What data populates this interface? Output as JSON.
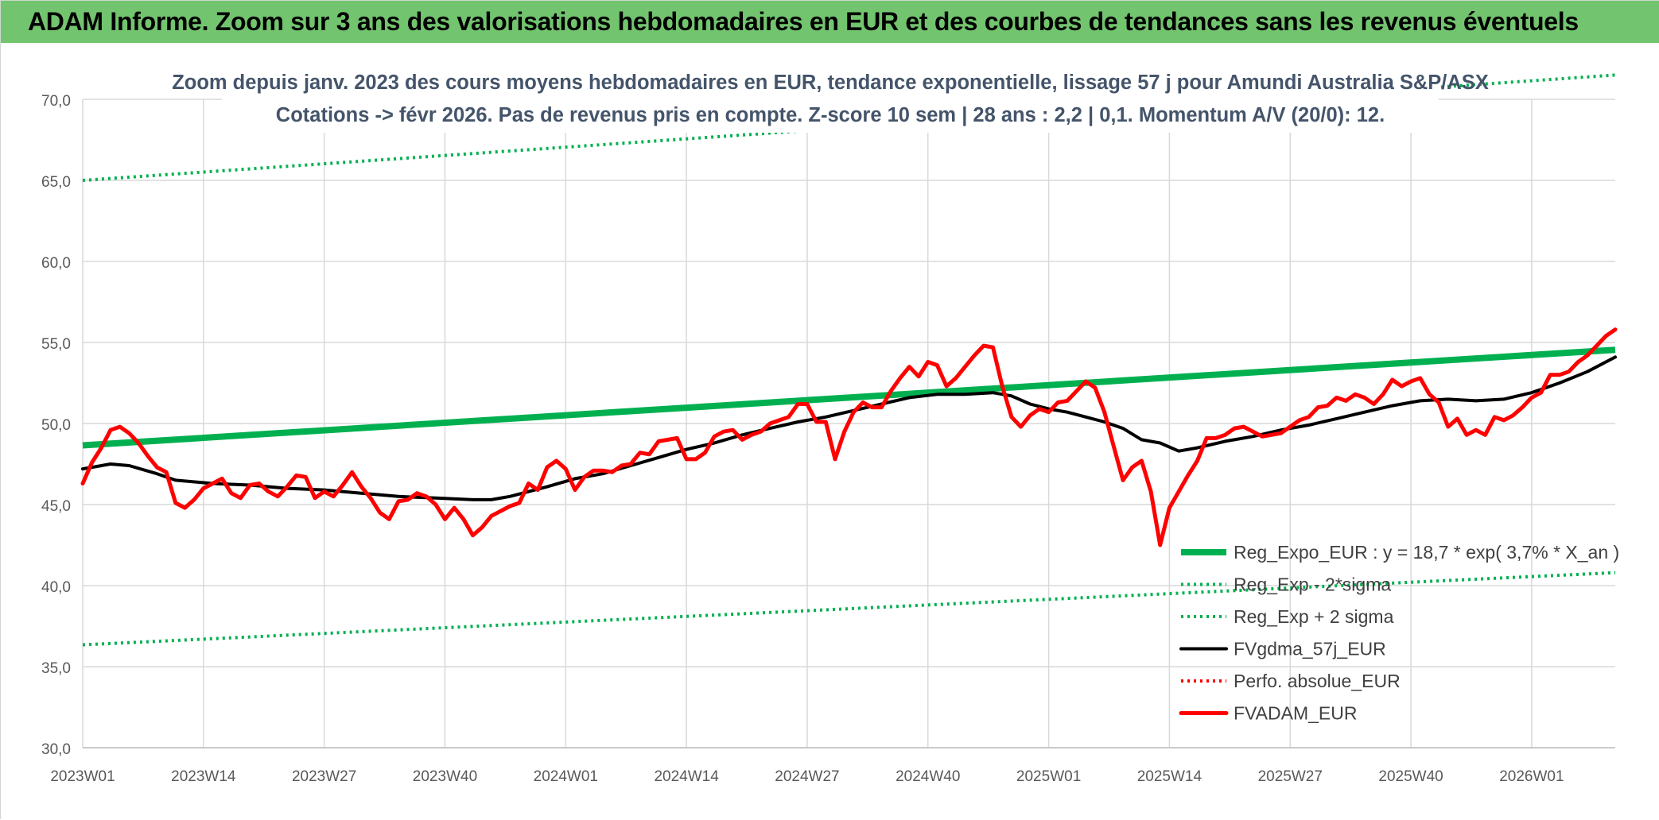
{
  "banner": {
    "title": "ADAM Informe. Zoom sur 3 ans des valorisations hebdomadaires en EUR et des courbes de tendances sans les revenus éventuels"
  },
  "chart_data": {
    "type": "line",
    "title_line1": "Zoom depuis janv. 2023 des cours moyens hebdomadaires en EUR, tendance exponentielle, lissage 57 j pour Amundi Australia S&P/ASX",
    "title_line2": "Cotations -> févr 2026. Pas de revenus pris en compte. Z-score 10 sem | 28 ans : 2,2 | 0,1. Momentum A/V (20/0): 12.",
    "ylim": [
      30,
      70
    ],
    "y_ticks": [
      "30,0",
      "35,0",
      "40,0",
      "45,0",
      "50,0",
      "55,0",
      "60,0",
      "65,0",
      "70,0"
    ],
    "x_ticks": [
      "2023W01",
      "2023W14",
      "2023W27",
      "2023W40",
      "2024W01",
      "2024W14",
      "2024W27",
      "2024W40",
      "2025W01",
      "2025W14",
      "2025W27",
      "2025W40",
      "2026W01"
    ],
    "grid": true,
    "legend_position": "bottom-right",
    "series": [
      {
        "name": "Reg_Expo_EUR : y = 18,7 * exp( 3,7% *  X_an )",
        "color": "#00b050",
        "style": "solid-thick",
        "points": [
          [
            0,
            48.65
          ],
          [
            165,
            54.55
          ]
        ]
      },
      {
        "name": "Reg_Exp - 2*sigma",
        "color": "#00b050",
        "style": "dotted",
        "points": [
          [
            0,
            36.35
          ],
          [
            165,
            40.8
          ]
        ]
      },
      {
        "name": "Reg_Exp + 2 sigma",
        "color": "#00b050",
        "style": "dotted",
        "points": [
          [
            0,
            65.0
          ],
          [
            165,
            71.5
          ]
        ]
      },
      {
        "name": "FVgdma_57j_EUR",
        "color": "#000000",
        "style": "solid",
        "points": [
          [
            0,
            47.2
          ],
          [
            3,
            47.5
          ],
          [
            5,
            47.4
          ],
          [
            8,
            46.9
          ],
          [
            10,
            46.5
          ],
          [
            14,
            46.3
          ],
          [
            18,
            46.2
          ],
          [
            22,
            46.0
          ],
          [
            26,
            45.9
          ],
          [
            30,
            45.7
          ],
          [
            34,
            45.5
          ],
          [
            38,
            45.4
          ],
          [
            42,
            45.3
          ],
          [
            44,
            45.3
          ],
          [
            46,
            45.5
          ],
          [
            48,
            45.8
          ],
          [
            50,
            46.1
          ],
          [
            53,
            46.6
          ],
          [
            56,
            46.9
          ],
          [
            59,
            47.4
          ],
          [
            62,
            47.9
          ],
          [
            65,
            48.4
          ],
          [
            68,
            48.8
          ],
          [
            71,
            49.3
          ],
          [
            74,
            49.7
          ],
          [
            77,
            50.1
          ],
          [
            80,
            50.4
          ],
          [
            83,
            50.8
          ],
          [
            86,
            51.2
          ],
          [
            89,
            51.6
          ],
          [
            92,
            51.8
          ],
          [
            95,
            51.8
          ],
          [
            98,
            51.9
          ],
          [
            100,
            51.7
          ],
          [
            102,
            51.2
          ],
          [
            104,
            50.9
          ],
          [
            106,
            50.7
          ],
          [
            108,
            50.4
          ],
          [
            110,
            50.1
          ],
          [
            112,
            49.7
          ],
          [
            114,
            49.0
          ],
          [
            116,
            48.8
          ],
          [
            118,
            48.3
          ],
          [
            120,
            48.5
          ],
          [
            123,
            48.9
          ],
          [
            126,
            49.2
          ],
          [
            129,
            49.6
          ],
          [
            132,
            49.9
          ],
          [
            135,
            50.3
          ],
          [
            138,
            50.7
          ],
          [
            141,
            51.1
          ],
          [
            144,
            51.4
          ],
          [
            147,
            51.5
          ],
          [
            150,
            51.4
          ],
          [
            153,
            51.5
          ],
          [
            156,
            51.9
          ],
          [
            159,
            52.5
          ],
          [
            162,
            53.2
          ],
          [
            165,
            54.1
          ]
        ]
      },
      {
        "name": "Perfo. absolue_EUR",
        "color": "#ff0000",
        "style": "dotted",
        "points": []
      },
      {
        "name": "FVADAM_EUR",
        "color": "#ff0000",
        "style": "solid-thick",
        "points": [
          [
            0,
            46.3
          ],
          [
            1,
            47.6
          ],
          [
            2,
            48.5
          ],
          [
            3,
            49.6
          ],
          [
            4,
            49.8
          ],
          [
            5,
            49.4
          ],
          [
            6,
            48.8
          ],
          [
            7,
            48.0
          ],
          [
            8,
            47.3
          ],
          [
            9,
            47.0
          ],
          [
            10,
            45.1
          ],
          [
            11,
            44.8
          ],
          [
            12,
            45.3
          ],
          [
            13,
            46.0
          ],
          [
            14,
            46.3
          ],
          [
            15,
            46.6
          ],
          [
            16,
            45.7
          ],
          [
            17,
            45.4
          ],
          [
            18,
            46.2
          ],
          [
            19,
            46.3
          ],
          [
            20,
            45.8
          ],
          [
            21,
            45.5
          ],
          [
            22,
            46.1
          ],
          [
            23,
            46.8
          ],
          [
            24,
            46.7
          ],
          [
            25,
            45.4
          ],
          [
            26,
            45.8
          ],
          [
            27,
            45.5
          ],
          [
            28,
            46.2
          ],
          [
            29,
            47.0
          ],
          [
            30,
            46.1
          ],
          [
            31,
            45.4
          ],
          [
            32,
            44.5
          ],
          [
            33,
            44.1
          ],
          [
            34,
            45.2
          ],
          [
            35,
            45.3
          ],
          [
            36,
            45.7
          ],
          [
            37,
            45.5
          ],
          [
            38,
            45.0
          ],
          [
            39,
            44.1
          ],
          [
            40,
            44.8
          ],
          [
            41,
            44.1
          ],
          [
            42,
            43.1
          ],
          [
            43,
            43.6
          ],
          [
            44,
            44.3
          ],
          [
            45,
            44.6
          ],
          [
            46,
            44.9
          ],
          [
            47,
            45.1
          ],
          [
            48,
            46.3
          ],
          [
            49,
            45.9
          ],
          [
            50,
            47.3
          ],
          [
            51,
            47.7
          ],
          [
            52,
            47.2
          ],
          [
            53,
            45.9
          ],
          [
            54,
            46.7
          ],
          [
            55,
            47.1
          ],
          [
            56,
            47.1
          ],
          [
            57,
            47.0
          ],
          [
            58,
            47.4
          ],
          [
            59,
            47.5
          ],
          [
            60,
            48.2
          ],
          [
            61,
            48.1
          ],
          [
            62,
            48.9
          ],
          [
            63,
            49.0
          ],
          [
            64,
            49.1
          ],
          [
            65,
            47.8
          ],
          [
            66,
            47.8
          ],
          [
            67,
            48.2
          ],
          [
            68,
            49.2
          ],
          [
            69,
            49.5
          ],
          [
            70,
            49.6
          ],
          [
            71,
            49.0
          ],
          [
            72,
            49.3
          ],
          [
            73,
            49.5
          ],
          [
            74,
            50.0
          ],
          [
            75,
            50.2
          ],
          [
            76,
            50.4
          ],
          [
            77,
            51.2
          ],
          [
            78,
            51.2
          ],
          [
            79,
            50.1
          ],
          [
            80,
            50.1
          ],
          [
            81,
            47.8
          ],
          [
            82,
            49.5
          ],
          [
            83,
            50.7
          ],
          [
            84,
            51.3
          ],
          [
            85,
            51.0
          ],
          [
            86,
            51.0
          ],
          [
            87,
            52.0
          ],
          [
            88,
            52.8
          ],
          [
            89,
            53.5
          ],
          [
            90,
            52.9
          ],
          [
            91,
            53.8
          ],
          [
            92,
            53.6
          ],
          [
            93,
            52.3
          ],
          [
            94,
            52.8
          ],
          [
            95,
            53.5
          ],
          [
            96,
            54.2
          ],
          [
            97,
            54.8
          ],
          [
            98,
            54.7
          ],
          [
            99,
            52.3
          ],
          [
            100,
            50.4
          ],
          [
            101,
            49.8
          ],
          [
            102,
            50.5
          ],
          [
            103,
            50.9
          ],
          [
            104,
            50.7
          ],
          [
            105,
            51.3
          ],
          [
            106,
            51.4
          ],
          [
            107,
            52.0
          ],
          [
            108,
            52.6
          ],
          [
            109,
            52.2
          ],
          [
            110,
            50.7
          ],
          [
            111,
            48.6
          ],
          [
            112,
            46.5
          ],
          [
            113,
            47.3
          ],
          [
            114,
            47.7
          ],
          [
            115,
            45.8
          ],
          [
            116,
            42.5
          ],
          [
            117,
            44.8
          ],
          [
            118,
            45.8
          ],
          [
            119,
            46.8
          ],
          [
            120,
            47.7
          ],
          [
            121,
            49.1
          ],
          [
            122,
            49.1
          ],
          [
            123,
            49.3
          ],
          [
            124,
            49.7
          ],
          [
            125,
            49.8
          ],
          [
            126,
            49.5
          ],
          [
            127,
            49.2
          ],
          [
            128,
            49.3
          ],
          [
            129,
            49.4
          ],
          [
            130,
            49.8
          ],
          [
            131,
            50.2
          ],
          [
            132,
            50.4
          ],
          [
            133,
            51.0
          ],
          [
            134,
            51.1
          ],
          [
            135,
            51.6
          ],
          [
            136,
            51.4
          ],
          [
            137,
            51.8
          ],
          [
            138,
            51.6
          ],
          [
            139,
            51.2
          ],
          [
            140,
            51.8
          ],
          [
            141,
            52.7
          ],
          [
            142,
            52.3
          ],
          [
            143,
            52.6
          ],
          [
            144,
            52.8
          ],
          [
            145,
            51.8
          ],
          [
            146,
            51.3
          ],
          [
            147,
            49.8
          ],
          [
            148,
            50.3
          ],
          [
            149,
            49.3
          ],
          [
            150,
            49.6
          ],
          [
            151,
            49.3
          ],
          [
            152,
            50.4
          ],
          [
            153,
            50.2
          ],
          [
            154,
            50.5
          ],
          [
            155,
            51.0
          ],
          [
            156,
            51.6
          ],
          [
            157,
            51.9
          ],
          [
            158,
            53.0
          ],
          [
            159,
            53.0
          ],
          [
            160,
            53.2
          ],
          [
            161,
            53.8
          ],
          [
            162,
            54.2
          ],
          [
            163,
            54.8
          ],
          [
            164,
            55.4
          ],
          [
            165,
            55.8
          ]
        ]
      }
    ]
  }
}
